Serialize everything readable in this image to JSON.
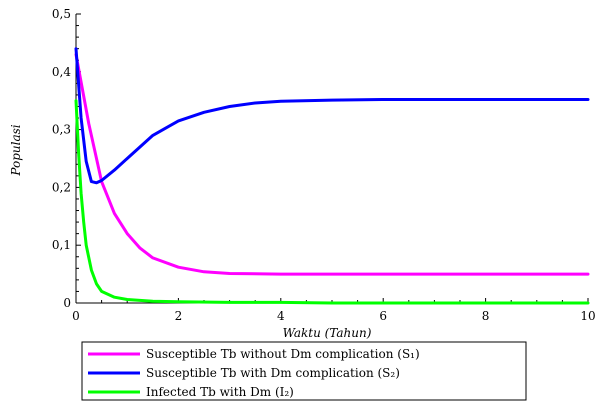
{
  "chart_data": {
    "type": "line",
    "xlabel": "Waktu (Tahun)",
    "ylabel": "Populasi",
    "xlim": [
      0,
      10
    ],
    "ylim": [
      0,
      0.5
    ],
    "x_ticks": [
      "0",
      "2",
      "4",
      "6",
      "8",
      "10"
    ],
    "y_ticks": [
      "0",
      "0,1",
      "0,2",
      "0,3",
      "0,4",
      "0,5"
    ],
    "grid": false,
    "legend_position": "bottom",
    "series": [
      {
        "name": "Susceptible Tb without Dm complication (S₁)",
        "color": "#ff00ff",
        "x": [
          0,
          0.25,
          0.5,
          0.75,
          1,
          1.25,
          1.5,
          2,
          2.5,
          3,
          4,
          5,
          6,
          7,
          8,
          9,
          10
        ],
        "y": [
          0.43,
          0.31,
          0.21,
          0.155,
          0.12,
          0.095,
          0.078,
          0.062,
          0.054,
          0.051,
          0.05,
          0.05,
          0.05,
          0.05,
          0.05,
          0.05,
          0.05
        ]
      },
      {
        "name": "Susceptible Tb with Dm complication (S₂)",
        "color": "#0000ff",
        "x": [
          0,
          0.1,
          0.2,
          0.3,
          0.4,
          0.5,
          0.75,
          1,
          1.5,
          2,
          2.5,
          3,
          3.5,
          4,
          5,
          6,
          7,
          8,
          9,
          10
        ],
        "y": [
          0.44,
          0.32,
          0.245,
          0.21,
          0.208,
          0.212,
          0.23,
          0.25,
          0.29,
          0.315,
          0.33,
          0.34,
          0.346,
          0.349,
          0.351,
          0.352,
          0.352,
          0.352,
          0.352,
          0.352
        ]
      },
      {
        "name": "Infected Tb with Dm (I₂)",
        "color": "#00ff00",
        "x": [
          0,
          0.05,
          0.1,
          0.15,
          0.2,
          0.3,
          0.4,
          0.5,
          0.75,
          1,
          1.5,
          2,
          3,
          4,
          5,
          6,
          7,
          8,
          9,
          10
        ],
        "y": [
          0.35,
          0.26,
          0.19,
          0.14,
          0.1,
          0.057,
          0.033,
          0.02,
          0.01,
          0.006,
          0.003,
          0.002,
          0.001,
          0.001,
          0,
          0,
          0,
          0,
          0,
          0
        ]
      }
    ]
  }
}
